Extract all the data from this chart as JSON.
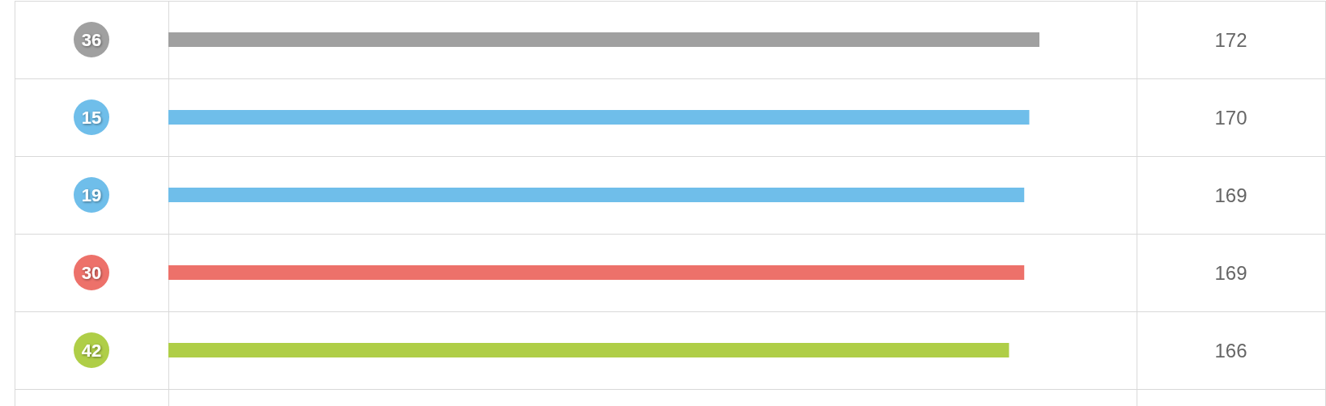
{
  "chart_data": {
    "type": "bar",
    "orientation": "horizontal",
    "categories": [
      "36",
      "15",
      "19",
      "30",
      "42"
    ],
    "values": [
      172,
      170,
      169,
      169,
      166
    ],
    "colors": [
      "#a0a0a0",
      "#6fbeea",
      "#6fbeea",
      "#ed716a",
      "#afce47"
    ],
    "data_labels": true,
    "grid": true,
    "tick_labels": "y"
  }
}
